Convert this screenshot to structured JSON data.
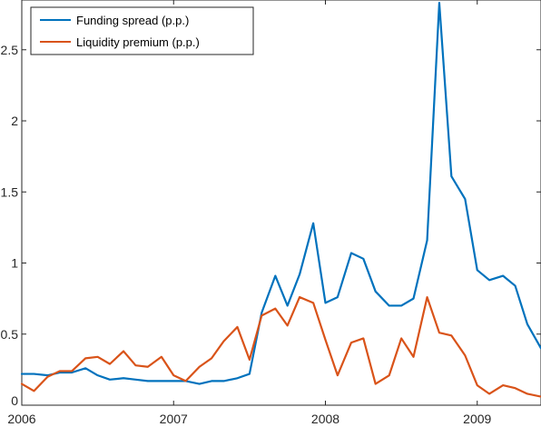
{
  "chart_data": {
    "type": "line",
    "title": "",
    "xlabel": "",
    "ylabel": "",
    "xlim": [
      2006,
      2009.42
    ],
    "ylim": [
      0,
      2.85
    ],
    "x_ticks": [
      2006,
      2007,
      2008,
      2009
    ],
    "x_tick_labels": [
      "2006",
      "2007",
      "2008",
      "2009"
    ],
    "y_ticks": [
      0,
      0.5,
      1,
      1.5,
      2,
      2.5
    ],
    "y_tick_labels": [
      "0",
      "0.5",
      "1",
      "1.5",
      "2",
      "2.5"
    ],
    "grid": false,
    "legend_position": "top-left",
    "x": [
      2006.0,
      2006.08,
      2006.17,
      2006.25,
      2006.33,
      2006.42,
      2006.5,
      2006.58,
      2006.67,
      2006.75,
      2006.83,
      2006.92,
      2007.0,
      2007.08,
      2007.17,
      2007.25,
      2007.33,
      2007.42,
      2007.5,
      2007.58,
      2007.67,
      2007.75,
      2007.83,
      2007.92,
      2008.0,
      2008.08,
      2008.17,
      2008.25,
      2008.33,
      2008.42,
      2008.5,
      2008.58,
      2008.67,
      2008.75,
      2008.83,
      2008.92,
      2009.0,
      2009.08,
      2009.17,
      2009.25,
      2009.33,
      2009.42
    ],
    "series": [
      {
        "name": "Funding spread (p.p.)",
        "color": "#0072BD",
        "values": [
          0.22,
          0.22,
          0.21,
          0.23,
          0.23,
          0.26,
          0.21,
          0.18,
          0.19,
          0.18,
          0.17,
          0.17,
          0.17,
          0.17,
          0.15,
          0.17,
          0.17,
          0.19,
          0.22,
          0.65,
          0.91,
          0.7,
          0.92,
          1.28,
          0.72,
          0.76,
          1.07,
          1.03,
          0.8,
          0.7,
          0.7,
          0.75,
          1.16,
          2.83,
          1.61,
          1.45,
          0.95,
          0.88,
          0.91,
          0.84,
          0.57,
          0.4
        ]
      },
      {
        "name": "Liquidity premium (p.p.)",
        "color": "#D95319",
        "values": [
          0.15,
          0.1,
          0.2,
          0.24,
          0.24,
          0.33,
          0.34,
          0.29,
          0.38,
          0.28,
          0.27,
          0.34,
          0.21,
          0.17,
          0.27,
          0.33,
          0.45,
          0.55,
          0.32,
          0.63,
          0.68,
          0.56,
          0.76,
          0.72,
          0.46,
          0.21,
          0.44,
          0.47,
          0.15,
          0.21,
          0.47,
          0.34,
          0.76,
          0.51,
          0.49,
          0.35,
          0.14,
          0.08,
          0.14,
          0.12,
          0.08,
          0.06
        ]
      }
    ]
  }
}
